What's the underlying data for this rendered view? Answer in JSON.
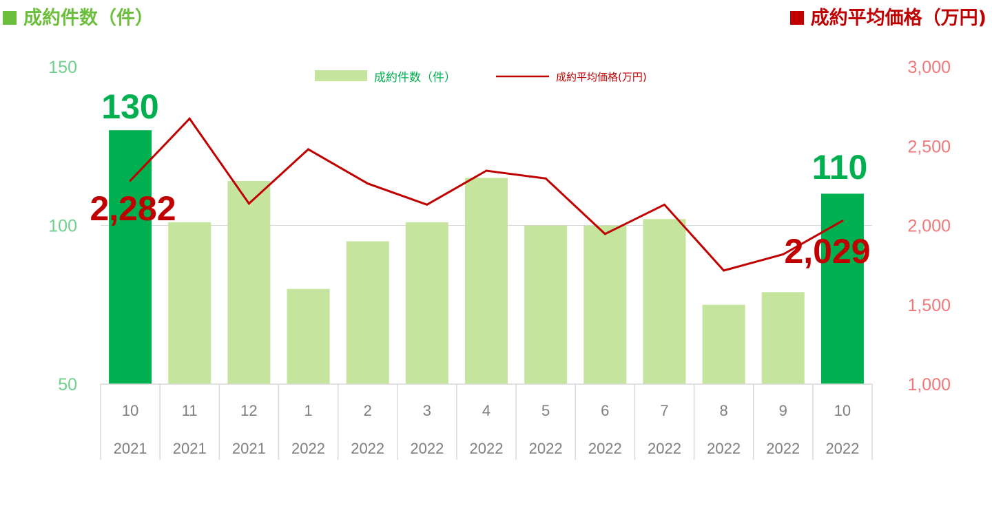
{
  "titles": {
    "left": "成約件数（件）",
    "right": "成約平均価格（万円)"
  },
  "colors": {
    "bar_highlight": "#00b050",
    "bar_normal": "#c5e59e",
    "line": "#c00000",
    "left_axis_text": "#6fd08c",
    "right_axis_text": "#f07878",
    "grid": "#d9d9d9"
  },
  "chart_data": {
    "type": "bar",
    "categories": [
      {
        "month": "10",
        "year": "2021"
      },
      {
        "month": "11",
        "year": "2021"
      },
      {
        "month": "12",
        "year": "2021"
      },
      {
        "month": "1",
        "year": "2022"
      },
      {
        "month": "2",
        "year": "2022"
      },
      {
        "month": "3",
        "year": "2022"
      },
      {
        "month": "4",
        "year": "2022"
      },
      {
        "month": "5",
        "year": "2022"
      },
      {
        "month": "6",
        "year": "2022"
      },
      {
        "month": "7",
        "year": "2022"
      },
      {
        "month": "8",
        "year": "2022"
      },
      {
        "month": "9",
        "year": "2022"
      },
      {
        "month": "10",
        "year": "2022"
      }
    ],
    "series": [
      {
        "name": "成約件数（件）",
        "type": "bar",
        "axis": "left",
        "values": [
          130,
          101,
          114,
          80,
          95,
          101,
          115,
          100,
          100,
          102,
          75,
          79,
          110
        ],
        "highlight": [
          true,
          false,
          false,
          false,
          false,
          false,
          false,
          false,
          false,
          false,
          false,
          false,
          true
        ]
      },
      {
        "name": "成約平均価格(万円)",
        "type": "line",
        "axis": "right",
        "values": [
          2282,
          2673,
          2138,
          2480,
          2264,
          2131,
          2345,
          2296,
          1946,
          2131,
          1716,
          1818,
          2029
        ]
      }
    ],
    "left_axis": {
      "min": 50,
      "max": 150,
      "ticks": [
        "150",
        "100",
        "50"
      ]
    },
    "right_axis": {
      "min": 1000,
      "max": 3000,
      "ticks": [
        "3,000",
        "2,500",
        "2,000",
        "1,500",
        "1,000"
      ]
    },
    "grid": true,
    "legend_position": "top-center",
    "data_labels": {
      "count_first": "130",
      "count_last": "110",
      "price_first": "2,282",
      "price_last": "2,029"
    }
  }
}
